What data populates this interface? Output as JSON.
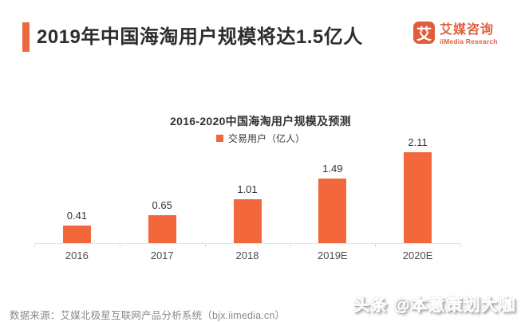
{
  "header": {
    "title": "2019年中国海淘用户规模将达1.5亿人"
  },
  "logo": {
    "symbol": "艾",
    "name_cn": "艾媒咨询",
    "name_en": "iiMedia Research"
  },
  "chart_data": {
    "type": "bar",
    "title": "2016-2020中国海淘用户规模及预测",
    "legend": "交易用户（亿人）",
    "categories": [
      "2016",
      "2017",
      "2018",
      "2019E",
      "2020E"
    ],
    "values": [
      0.41,
      0.65,
      1.01,
      1.49,
      2.11
    ],
    "ylim": [
      0,
      2.4
    ],
    "grid": false,
    "legend_position": "top-center",
    "value_labels": true,
    "bar_color": "#F2673C"
  },
  "colors": {
    "accent": "#EC6A3F",
    "bar": "#F2673C",
    "logo": "#E05E3E",
    "axis": "#E4E4E4"
  },
  "footer": {
    "source": "数据来源：艾媒北极星互联网产品分析系统（bjx.iimedia.cn）"
  },
  "watermark": {
    "text": "头条 @本意策划大咖"
  }
}
